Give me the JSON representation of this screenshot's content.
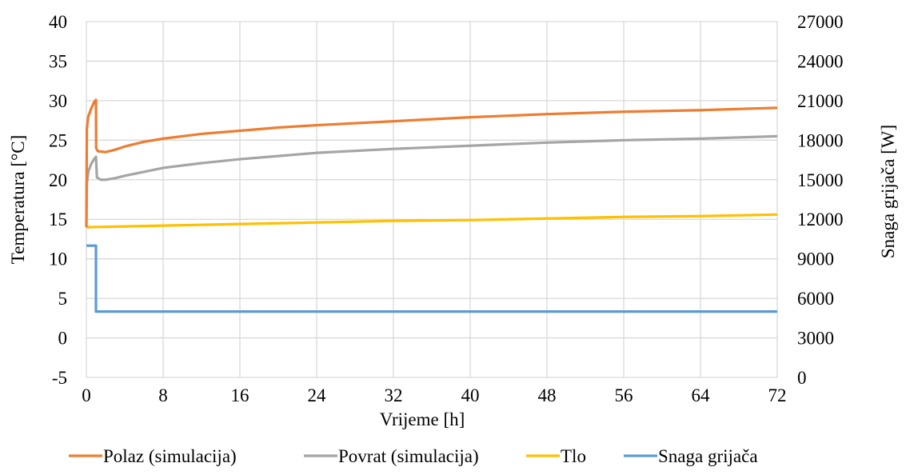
{
  "chart_data": {
    "type": "line",
    "title": "",
    "xlabel": "Vrijeme [h]",
    "ylabel": "Temperatura [°C]",
    "y2label": "Snaga grijača [W]",
    "xlim": [
      0,
      72
    ],
    "ylim": [
      -5,
      40
    ],
    "y2lim": [
      0,
      27000
    ],
    "x_ticks": [
      "0",
      "8",
      "16",
      "24",
      "32",
      "40",
      "48",
      "56",
      "64",
      "72"
    ],
    "y_ticks": [
      "-5",
      "0",
      "5",
      "10",
      "15",
      "20",
      "25",
      "30",
      "35",
      "40"
    ],
    "y2_ticks": [
      "0",
      "3000",
      "6000",
      "9000",
      "12000",
      "15000",
      "18000",
      "21000",
      "24000",
      "27000"
    ],
    "grid": true,
    "legend_position": "bottom",
    "series": [
      {
        "name": "Polaz (simulacija)",
        "axis": "left",
        "color": "#ED7D31",
        "x": [
          0,
          0.05,
          0.2,
          0.5,
          0.8,
          1.0,
          1.02,
          1.2,
          2,
          3,
          4,
          6,
          8,
          12,
          16,
          20,
          24,
          32,
          40,
          48,
          56,
          64,
          72
        ],
        "y": [
          14,
          26.5,
          28,
          29,
          29.8,
          30.1,
          24,
          23.6,
          23.5,
          23.8,
          24.2,
          24.8,
          25.2,
          25.8,
          26.2,
          26.6,
          26.9,
          27.4,
          27.9,
          28.3,
          28.6,
          28.8,
          29.1
        ]
      },
      {
        "name": "Povrat (simulacija)",
        "axis": "left",
        "color": "#A5A5A5",
        "x": [
          0,
          0.05,
          0.2,
          0.5,
          0.8,
          1.0,
          1.1,
          1.5,
          2,
          3,
          4,
          6,
          8,
          12,
          16,
          20,
          24,
          32,
          40,
          48,
          56,
          64,
          72
        ],
        "y": [
          14,
          19.5,
          21,
          22,
          22.6,
          22.9,
          20.3,
          20.0,
          20.0,
          20.2,
          20.5,
          21.0,
          21.5,
          22.1,
          22.6,
          23.0,
          23.4,
          23.9,
          24.3,
          24.7,
          25.0,
          25.2,
          25.5
        ]
      },
      {
        "name": "Tlo",
        "axis": "left",
        "color": "#FFC000",
        "x": [
          0,
          8,
          16,
          24,
          32,
          40,
          48,
          56,
          64,
          72
        ],
        "y": [
          14.0,
          14.2,
          14.4,
          14.6,
          14.8,
          14.9,
          15.1,
          15.3,
          15.4,
          15.6
        ]
      },
      {
        "name": "Snaga grijača",
        "axis": "right",
        "color": "#5B9BD5",
        "x": [
          0,
          1.0,
          1.0,
          72
        ],
        "y": [
          10000,
          10000,
          5000,
          5000
        ]
      }
    ]
  }
}
